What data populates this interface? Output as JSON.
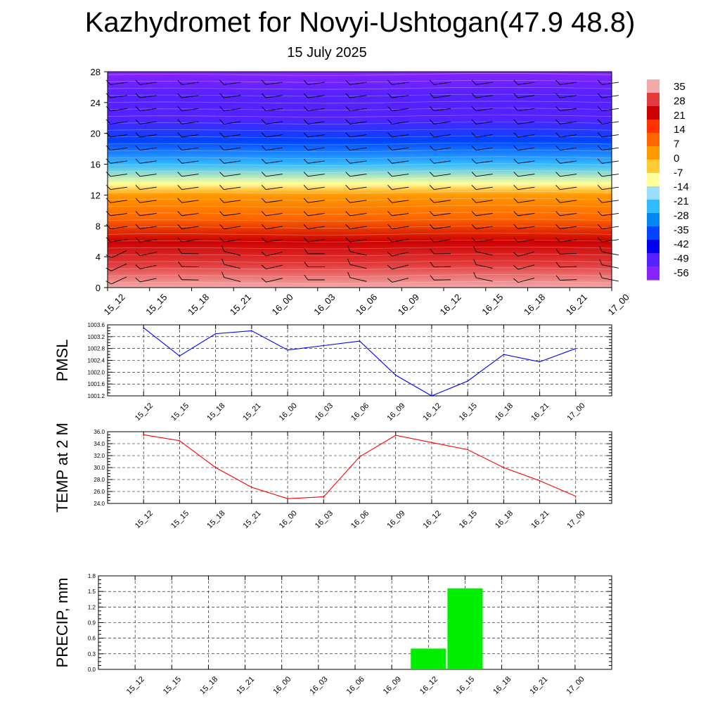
{
  "header": {
    "title": "Kazhydromet for Novyi-Ushtogan(47.9 48.8)",
    "subtitle": "15 July 2025"
  },
  "times": [
    "15_12",
    "15_15",
    "15_18",
    "15_21",
    "16_00",
    "16_03",
    "16_06",
    "16_09",
    "16_12",
    "16_15",
    "16_18",
    "16_21",
    "17_00"
  ],
  "colors": {
    "pmsl": "#0000ff",
    "temp": "#ff0000",
    "precip": "#00ee00"
  },
  "chart_data": [
    {
      "type": "heatmap",
      "title": "",
      "ylim": [
        0,
        28
      ],
      "yticks": [
        "0",
        "4",
        "8",
        "12",
        "16",
        "20",
        "24",
        "28"
      ],
      "colorbar": {
        "labels": [
          "35",
          "28",
          "21",
          "14",
          "7",
          "0",
          "-7",
          "-14",
          "-21",
          "-28",
          "-35",
          "-42",
          "-49",
          "-56"
        ],
        "colors": [
          "#f4a9a9",
          "#e23b3b",
          "#cc0000",
          "#ff3300",
          "#ff6600",
          "#ff9900",
          "#ffcc33",
          "#ffff99",
          "#99ddff",
          "#33bbff",
          "#0088ee",
          "#0044ff",
          "#0000ee",
          "#5522ff",
          "#8822ff"
        ]
      },
      "profile": [
        {
          "level": 0,
          "value": 33
        },
        {
          "level": 3,
          "value": 28
        },
        {
          "level": 6,
          "value": 21
        },
        {
          "level": 9,
          "value": 10
        },
        {
          "level": 12,
          "value": 0
        },
        {
          "level": 13.5,
          "value": -14
        },
        {
          "level": 16,
          "value": -25
        },
        {
          "level": 19,
          "value": -40
        },
        {
          "level": 22,
          "value": -52
        },
        {
          "level": 25,
          "value": -56
        },
        {
          "level": 28,
          "value": -58
        }
      ]
    },
    {
      "type": "line",
      "ylabel": "PMSL",
      "ylim": [
        1001.2,
        1003.6
      ],
      "yticks": [
        "1001.2",
        "1001.6",
        "1002.0",
        "1002.4",
        "1002.8",
        "1003.2",
        "1003.6"
      ],
      "series": [
        {
          "values": [
            1003.5,
            1002.55,
            1003.3,
            1003.4,
            1002.75,
            1002.9,
            1003.05,
            1001.9,
            1001.2,
            1001.7,
            1002.6,
            1002.35,
            1002.8
          ]
        }
      ]
    },
    {
      "type": "line",
      "ylabel": "TEMP at 2 M",
      "ylim": [
        24.0,
        36.0
      ],
      "yticks": [
        "24.0",
        "26.0",
        "28.0",
        "30.0",
        "32.0",
        "34.0",
        "36.0"
      ],
      "series": [
        {
          "values": [
            35.5,
            34.5,
            30.0,
            26.7,
            24.8,
            25.1,
            31.8,
            35.4,
            34.2,
            33.0,
            30.0,
            27.8,
            25.2
          ]
        }
      ]
    },
    {
      "type": "bar",
      "ylabel": "PRECIP, mm",
      "ylim": [
        0.0,
        1.8
      ],
      "yticks": [
        "0.0",
        "0.3",
        "0.6",
        "0.9",
        "1.2",
        "1.5",
        "1.8"
      ],
      "values": [
        0,
        0,
        0,
        0,
        0,
        0,
        0,
        0,
        0.4,
        1.56,
        0,
        0,
        0
      ]
    }
  ]
}
